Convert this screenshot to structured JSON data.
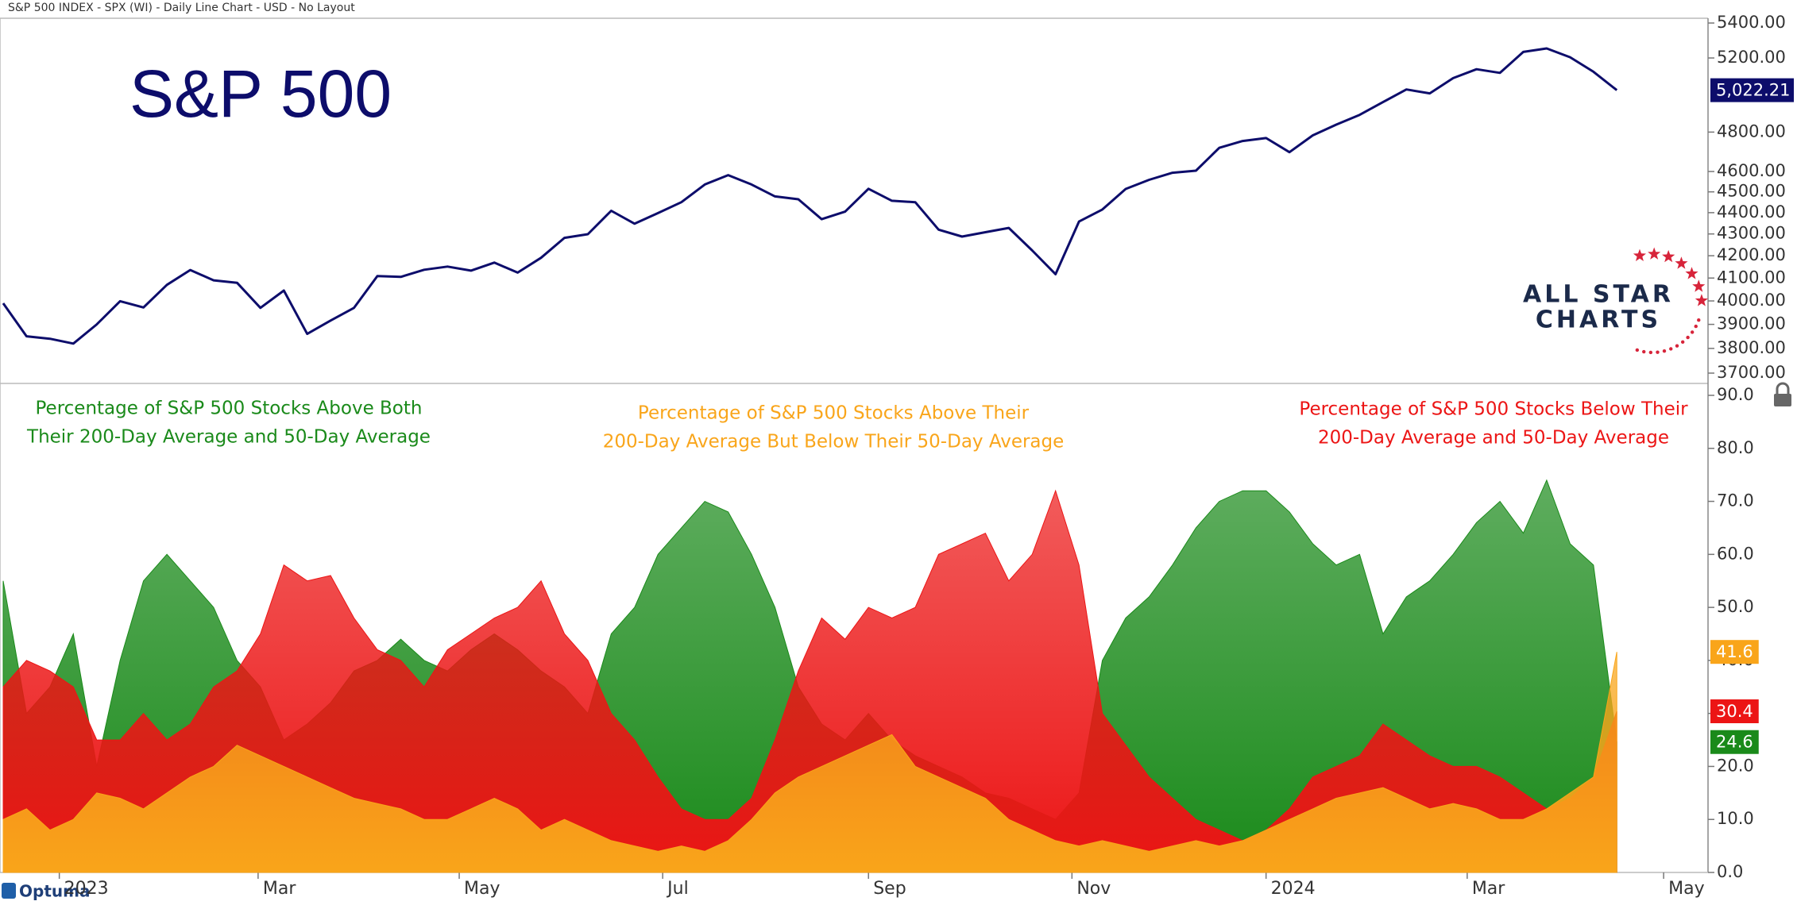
{
  "header": "S&P 500 INDEX - SPX (WI) - Daily Line Chart - USD - No Layout",
  "brand": "Optuma",
  "logo": [
    "ALL STAR",
    "CHARTS"
  ],
  "chart_data": [
    {
      "type": "line",
      "title": "S&P 500",
      "log_scale": true,
      "xlim": [
        0,
        73
      ],
      "ylim": [
        3700,
        5400
      ],
      "yticks": [
        {
          "value": 3700,
          "label": "3700.00"
        },
        {
          "value": 3800,
          "label": "3800.00"
        },
        {
          "value": 3900,
          "label": "3900.00"
        },
        {
          "value": 4000,
          "label": "4000.00"
        },
        {
          "value": 4100,
          "label": "4100.00"
        },
        {
          "value": 4200,
          "label": "4200.00"
        },
        {
          "value": 4300,
          "label": "4300.00"
        },
        {
          "value": 4400,
          "label": "4400.00"
        },
        {
          "value": 4500,
          "label": "4500.00"
        },
        {
          "value": 4600,
          "label": "4600.00"
        },
        {
          "value": 4800,
          "label": "4800.00"
        },
        {
          "value": 5200,
          "label": "5200.00"
        },
        {
          "value": 5400,
          "label": "5400.00"
        }
      ],
      "series": [
        {
          "color": "#0d0d6b",
          "values": [
            3990,
            3850,
            3840,
            3820,
            3900,
            3999,
            3972,
            4070,
            4136,
            4090,
            4079,
            3970,
            4045,
            3860,
            3916,
            3970,
            4109,
            4105,
            4137,
            4151,
            4133,
            4169,
            4124,
            4191,
            4282,
            4299,
            4409,
            4348,
            4398,
            4450,
            4536,
            4582,
            4536,
            4478,
            4464,
            4369,
            4405,
            4515,
            4457,
            4450,
            4320,
            4288,
            4308,
            4328,
            4224,
            4117,
            4358,
            4415,
            4514,
            4559,
            4594,
            4604,
            4719,
            4754,
            4769,
            4697,
            4783,
            4839,
            4890,
            4958,
            5026,
            5005,
            5088,
            5137,
            5117,
            5234,
            5254,
            5204,
            5123,
            5022.21
          ],
          "value_labels": [
            null,
            null,
            null,
            null,
            null,
            null,
            null,
            null,
            null,
            null,
            null,
            null,
            null,
            null,
            null,
            null,
            null,
            null,
            null,
            null,
            null,
            null,
            null,
            null,
            null,
            null,
            null,
            null,
            null,
            null,
            null,
            null,
            null,
            null,
            null,
            null,
            null,
            null,
            null,
            null,
            null,
            null,
            null,
            null,
            null,
            null,
            null,
            null,
            null,
            null,
            null,
            null,
            null,
            null,
            null,
            null,
            null,
            null,
            null,
            null,
            null,
            null,
            null,
            null,
            null,
            null,
            null,
            null,
            null,
            "5,022.21"
          ]
        }
      ]
    },
    {
      "type": "area",
      "xlim": [
        0,
        73
      ],
      "ylim": [
        0,
        90
      ],
      "yticks": [
        {
          "value": 0,
          "label": "0.0"
        },
        {
          "value": 10,
          "label": "10.0"
        },
        {
          "value": 20,
          "label": "20.0"
        },
        {
          "value": 30,
          "label": "30.0"
        },
        {
          "value": 40,
          "label": "40.0"
        },
        {
          "value": 50,
          "label": "50.0"
        },
        {
          "value": 60,
          "label": "60.0"
        },
        {
          "value": 70,
          "label": "70.0"
        },
        {
          "value": 80,
          "label": "80.0"
        },
        {
          "value": 90,
          "label": "90.0"
        }
      ],
      "xticks": [
        {
          "value": 2.4,
          "label": "2023"
        },
        {
          "value": 10.9,
          "label": "Mar"
        },
        {
          "value": 19.5,
          "label": "May"
        },
        {
          "value": 28.2,
          "label": "Jul"
        },
        {
          "value": 37.0,
          "label": "Sep"
        },
        {
          "value": 45.7,
          "label": "Nov"
        },
        {
          "value": 54.0,
          "label": "2024"
        },
        {
          "value": 62.6,
          "label": "Mar"
        },
        {
          "value": 71.0,
          "label": "May"
        }
      ],
      "series": [
        {
          "name": [
            "Percentage of S&P 500 Stocks Above Both",
            "Their 200-Day Average and 50-Day Average"
          ],
          "color": "#1a8a1a",
          "values": [
            55,
            30,
            35,
            45,
            20,
            40,
            55,
            60,
            55,
            50,
            40,
            35,
            25,
            28,
            32,
            38,
            40,
            44,
            40,
            38,
            42,
            45,
            42,
            38,
            35,
            30,
            45,
            50,
            60,
            65,
            70,
            68,
            60,
            50,
            35,
            28,
            25,
            30,
            25,
            22,
            20,
            18,
            15,
            14,
            12,
            10,
            15,
            40,
            48,
            52,
            58,
            65,
            70,
            72,
            72,
            68,
            62,
            58,
            60,
            45,
            52,
            55,
            60,
            66,
            70,
            64,
            74,
            62,
            58,
            24.6
          ]
        },
        {
          "name": [
            "Percentage of S&P 500 Stocks Below Their",
            "200-Day Average and 50-Day Average"
          ],
          "color": "#ec1515",
          "values": [
            35,
            40,
            38,
            35,
            25,
            25,
            30,
            25,
            28,
            35,
            38,
            45,
            58,
            55,
            56,
            48,
            42,
            40,
            35,
            42,
            45,
            48,
            50,
            55,
            45,
            40,
            30,
            25,
            18,
            12,
            10,
            10,
            14,
            25,
            38,
            48,
            44,
            50,
            48,
            50,
            60,
            62,
            64,
            55,
            60,
            72,
            58,
            30,
            24,
            18,
            14,
            10,
            8,
            6,
            8,
            12,
            18,
            20,
            22,
            28,
            25,
            22,
            20,
            20,
            18,
            15,
            12,
            14,
            18,
            30.4
          ]
        },
        {
          "name": [
            "Percentage of S&P 500 Stocks Above Their",
            "200-Day Average But Below Their 50-Day Average"
          ],
          "color": "#f9a51a",
          "values": [
            10,
            12,
            8,
            10,
            15,
            14,
            12,
            15,
            18,
            20,
            24,
            22,
            20,
            18,
            16,
            14,
            13,
            12,
            10,
            10,
            12,
            14,
            12,
            8,
            10,
            8,
            6,
            5,
            4,
            5,
            4,
            6,
            10,
            15,
            18,
            20,
            22,
            24,
            26,
            20,
            18,
            16,
            14,
            10,
            8,
            6,
            5,
            6,
            5,
            4,
            5,
            6,
            5,
            6,
            8,
            10,
            12,
            14,
            15,
            16,
            14,
            12,
            13,
            12,
            10,
            10,
            12,
            15,
            18,
            41.6
          ]
        }
      ]
    }
  ]
}
